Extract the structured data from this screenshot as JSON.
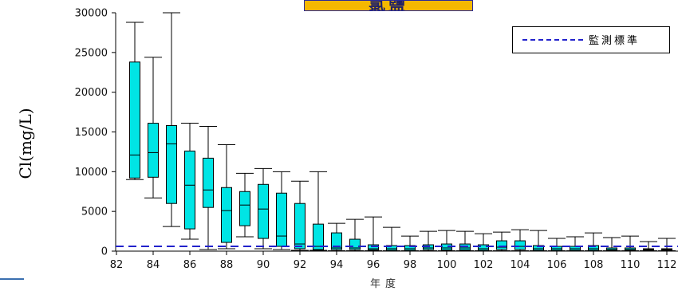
{
  "chart_data": {
    "type": "box",
    "title": "氯鹽",
    "ylabel": "Cl(mg/L)",
    "xlabel": "年度",
    "ylim": [
      0,
      30000
    ],
    "xlim": [
      82,
      112
    ],
    "y_ticks": [
      "0",
      "5000",
      "10000",
      "15000",
      "20000",
      "25000",
      "30000"
    ],
    "x_ticks": [
      "82",
      "84",
      "86",
      "88",
      "90",
      "92",
      "94",
      "96",
      "98",
      "100",
      "102",
      "104",
      "106",
      "108",
      "110",
      "112"
    ],
    "standard_line": {
      "name": "監測標準",
      "value": 600
    },
    "legend": {
      "position": "top-right",
      "entries": [
        "監測標準"
      ]
    },
    "box_color": "#00e5e5",
    "standard_color": "#2222cc",
    "boxes": [
      {
        "year": 83,
        "min": 9000,
        "q1": 9200,
        "median": 12100,
        "q3": 23800,
        "max": 28800
      },
      {
        "year": 84,
        "min": 6700,
        "q1": 9300,
        "median": 12400,
        "q3": 16100,
        "max": 24400
      },
      {
        "year": 85,
        "min": 3100,
        "q1": 6000,
        "median": 13500,
        "q3": 15800,
        "max": 30000
      },
      {
        "year": 86,
        "min": 1500,
        "q1": 2800,
        "median": 8300,
        "q3": 12600,
        "max": 16100
      },
      {
        "year": 87,
        "min": 200,
        "q1": 5500,
        "median": 7700,
        "q3": 11700,
        "max": 15700
      },
      {
        "year": 88,
        "min": 300,
        "q1": 1100,
        "median": 5100,
        "q3": 8000,
        "max": 13400
      },
      {
        "year": 89,
        "min": 1800,
        "q1": 3200,
        "median": 5800,
        "q3": 7500,
        "max": 9800
      },
      {
        "year": 90,
        "min": 300,
        "q1": 1600,
        "median": 5300,
        "q3": 8400,
        "max": 10400
      },
      {
        "year": 91,
        "min": 200,
        "q1": 600,
        "median": 1900,
        "q3": 7300,
        "max": 10000
      },
      {
        "year": 92,
        "min": 100,
        "q1": 300,
        "median": 900,
        "q3": 6000,
        "max": 8800
      },
      {
        "year": 93,
        "min": 100,
        "q1": 200,
        "median": 600,
        "q3": 3400,
        "max": 10000
      },
      {
        "year": 94,
        "min": 50,
        "q1": 200,
        "median": 400,
        "q3": 2300,
        "max": 3500
      },
      {
        "year": 95,
        "min": 50,
        "q1": 200,
        "median": 400,
        "q3": 1500,
        "max": 4000
      },
      {
        "year": 96,
        "min": 50,
        "q1": 150,
        "median": 300,
        "q3": 800,
        "max": 4300
      },
      {
        "year": 97,
        "min": 50,
        "q1": 100,
        "median": 300,
        "q3": 700,
        "max": 3000
      },
      {
        "year": 98,
        "min": 50,
        "q1": 100,
        "median": 300,
        "q3": 700,
        "max": 1900
      },
      {
        "year": 99,
        "min": 50,
        "q1": 200,
        "median": 400,
        "q3": 800,
        "max": 2500
      },
      {
        "year": 100,
        "min": 50,
        "q1": 150,
        "median": 400,
        "q3": 900,
        "max": 2600
      },
      {
        "year": 101,
        "min": 50,
        "q1": 150,
        "median": 400,
        "q3": 900,
        "max": 2500
      },
      {
        "year": 102,
        "min": 50,
        "q1": 100,
        "median": 300,
        "q3": 800,
        "max": 2200
      },
      {
        "year": 103,
        "min": 50,
        "q1": 200,
        "median": 500,
        "q3": 1300,
        "max": 2400
      },
      {
        "year": 104,
        "min": 50,
        "q1": 200,
        "median": 600,
        "q3": 1300,
        "max": 2700
      },
      {
        "year": 105,
        "min": 50,
        "q1": 100,
        "median": 300,
        "q3": 700,
        "max": 2600
      },
      {
        "year": 106,
        "min": 50,
        "q1": 100,
        "median": 300,
        "q3": 600,
        "max": 1600
      },
      {
        "year": 107,
        "min": 50,
        "q1": 100,
        "median": 300,
        "q3": 600,
        "max": 1800
      },
      {
        "year": 108,
        "min": 50,
        "q1": 100,
        "median": 300,
        "q3": 700,
        "max": 2300
      },
      {
        "year": 109,
        "min": 50,
        "q1": 100,
        "median": 200,
        "q3": 400,
        "max": 1700
      },
      {
        "year": 110,
        "min": 50,
        "q1": 100,
        "median": 200,
        "q3": 400,
        "max": 1900
      },
      {
        "year": 111,
        "min": 50,
        "q1": 100,
        "median": 200,
        "q3": 300,
        "max": 1200
      },
      {
        "year": 112,
        "min": 50,
        "q1": 100,
        "median": 200,
        "q3": 300,
        "max": 1600
      }
    ]
  }
}
